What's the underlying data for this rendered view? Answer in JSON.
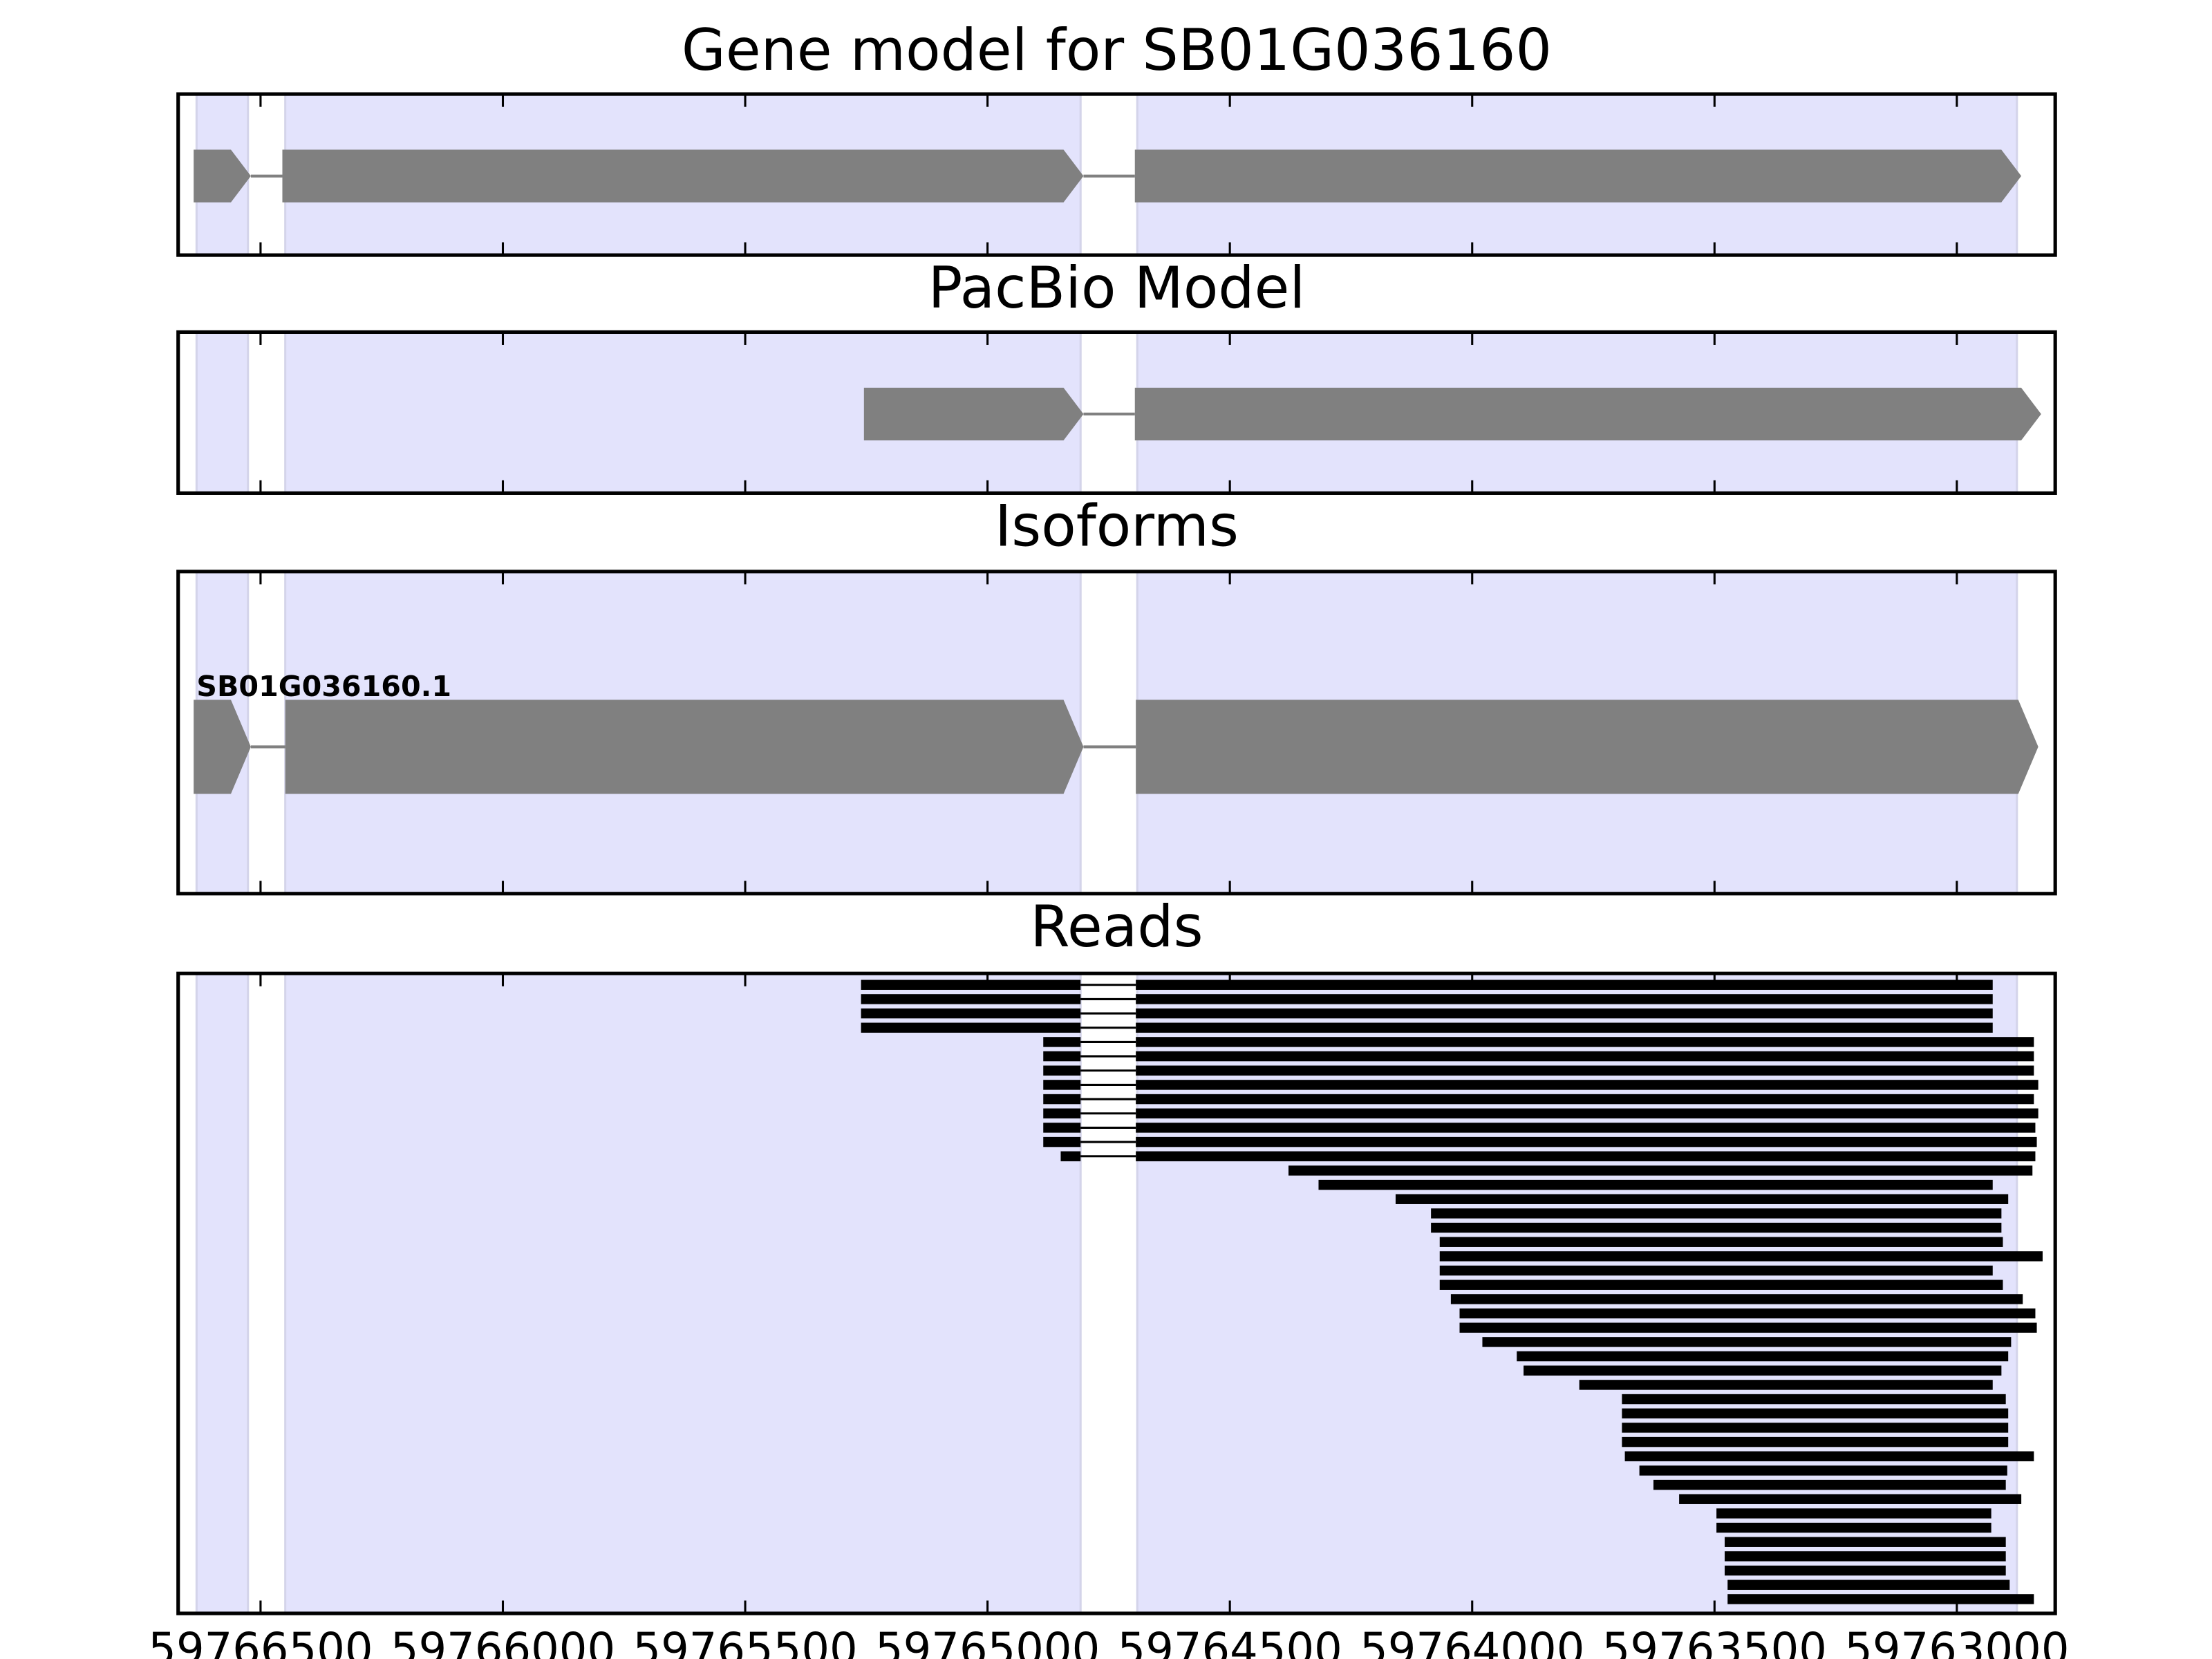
{
  "chart_data": {
    "type": "gene-tracks",
    "xlim": [
      59766670,
      59762797
    ],
    "xticks": [
      59766500,
      59766000,
      59765500,
      59765000,
      59764500,
      59764000,
      59763500,
      59763000
    ],
    "region_color": "#e3e3fc",
    "exon_regions": [
      [
        59766632,
        59766526
      ],
      [
        59766449,
        59764808
      ],
      [
        59764691,
        59762876
      ]
    ],
    "panels": [
      {
        "type": "gene-model",
        "title": "Gene model for SB01G036160",
        "color": "#808080",
        "features": [
          {
            "blocks": [
              [
                59766638,
                59766520
              ],
              [
                59766455,
                59764802
              ],
              [
                59764696,
                59762867
              ]
            ]
          }
        ]
      },
      {
        "type": "gene-model",
        "title": "PacBio Model",
        "color": "#808080",
        "features": [
          {
            "blocks": [
              [
                59765255,
                59764802
              ],
              [
                59764696,
                59762826
              ]
            ]
          }
        ]
      },
      {
        "type": "gene-model",
        "title": "Isoforms",
        "color": "#808080",
        "features": [
          {
            "name": "SB01G036160.1",
            "blocks": [
              [
                59766638,
                59766520
              ],
              [
                59766449,
                59764802
              ],
              [
                59764694,
                59762832
              ]
            ]
          }
        ]
      },
      {
        "type": "reads",
        "title": "Reads",
        "color": "#000000",
        "reads": [
          [
            [
              59765261,
              59764808
            ],
            [
              59764694,
              59762926
            ]
          ],
          [
            [
              59765261,
              59764808
            ],
            [
              59764694,
              59762926
            ]
          ],
          [
            [
              59765261,
              59764808
            ],
            [
              59764694,
              59762926
            ]
          ],
          [
            [
              59765261,
              59764808
            ],
            [
              59764694,
              59762926
            ]
          ],
          [
            [
              59764885,
              59764808
            ],
            [
              59764694,
              59762841
            ]
          ],
          [
            [
              59764885,
              59764808
            ],
            [
              59764694,
              59762841
            ]
          ],
          [
            [
              59764885,
              59764808
            ],
            [
              59764694,
              59762841
            ]
          ],
          [
            [
              59764885,
              59764808
            ],
            [
              59764694,
              59762832
            ]
          ],
          [
            [
              59764885,
              59764808
            ],
            [
              59764694,
              59762841
            ]
          ],
          [
            [
              59764885,
              59764808
            ],
            [
              59764694,
              59762832
            ]
          ],
          [
            [
              59764885,
              59764808
            ],
            [
              59764694,
              59762838
            ]
          ],
          [
            [
              59764885,
              59764808
            ],
            [
              59764694,
              59762835
            ]
          ],
          [
            [
              59764849,
              59764808
            ],
            [
              59764694,
              59762838
            ]
          ],
          [
            [
              59764379,
              59762844
            ]
          ],
          [
            [
              59764317,
              59762926
            ]
          ],
          [
            [
              59764158,
              59762894
            ]
          ],
          [
            [
              59764085,
              59762908
            ]
          ],
          [
            [
              59764085,
              59762908
            ]
          ],
          [
            [
              59764067,
              59762905
            ]
          ],
          [
            [
              59764067,
              59762823
            ]
          ],
          [
            [
              59764067,
              59762926
            ]
          ],
          [
            [
              59764067,
              59762905
            ]
          ],
          [
            [
              59764044,
              59762864
            ]
          ],
          [
            [
              59764026,
              59762838
            ]
          ],
          [
            [
              59764026,
              59762835
            ]
          ],
          [
            [
              59763979,
              59762888
            ]
          ],
          [
            [
              59763908,
              59762894
            ]
          ],
          [
            [
              59763894,
              59762908
            ]
          ],
          [
            [
              59763779,
              59762926
            ]
          ],
          [
            [
              59763691,
              59762899
            ]
          ],
          [
            [
              59763691,
              59762894
            ]
          ],
          [
            [
              59763691,
              59762894
            ]
          ],
          [
            [
              59763691,
              59762894
            ]
          ],
          [
            [
              59763685,
              59762841
            ]
          ],
          [
            [
              59763655,
              59762896
            ]
          ],
          [
            [
              59763626,
              59762899
            ]
          ],
          [
            [
              59763573,
              59762867
            ]
          ],
          [
            [
              59763496,
              59762929
            ]
          ],
          [
            [
              59763496,
              59762929
            ]
          ],
          [
            [
              59763479,
              59762899
            ]
          ],
          [
            [
              59763479,
              59762899
            ]
          ],
          [
            [
              59763479,
              59762899
            ]
          ],
          [
            [
              59763473,
              59762891
            ]
          ],
          [
            [
              59763473,
              59762841
            ]
          ]
        ]
      }
    ]
  }
}
